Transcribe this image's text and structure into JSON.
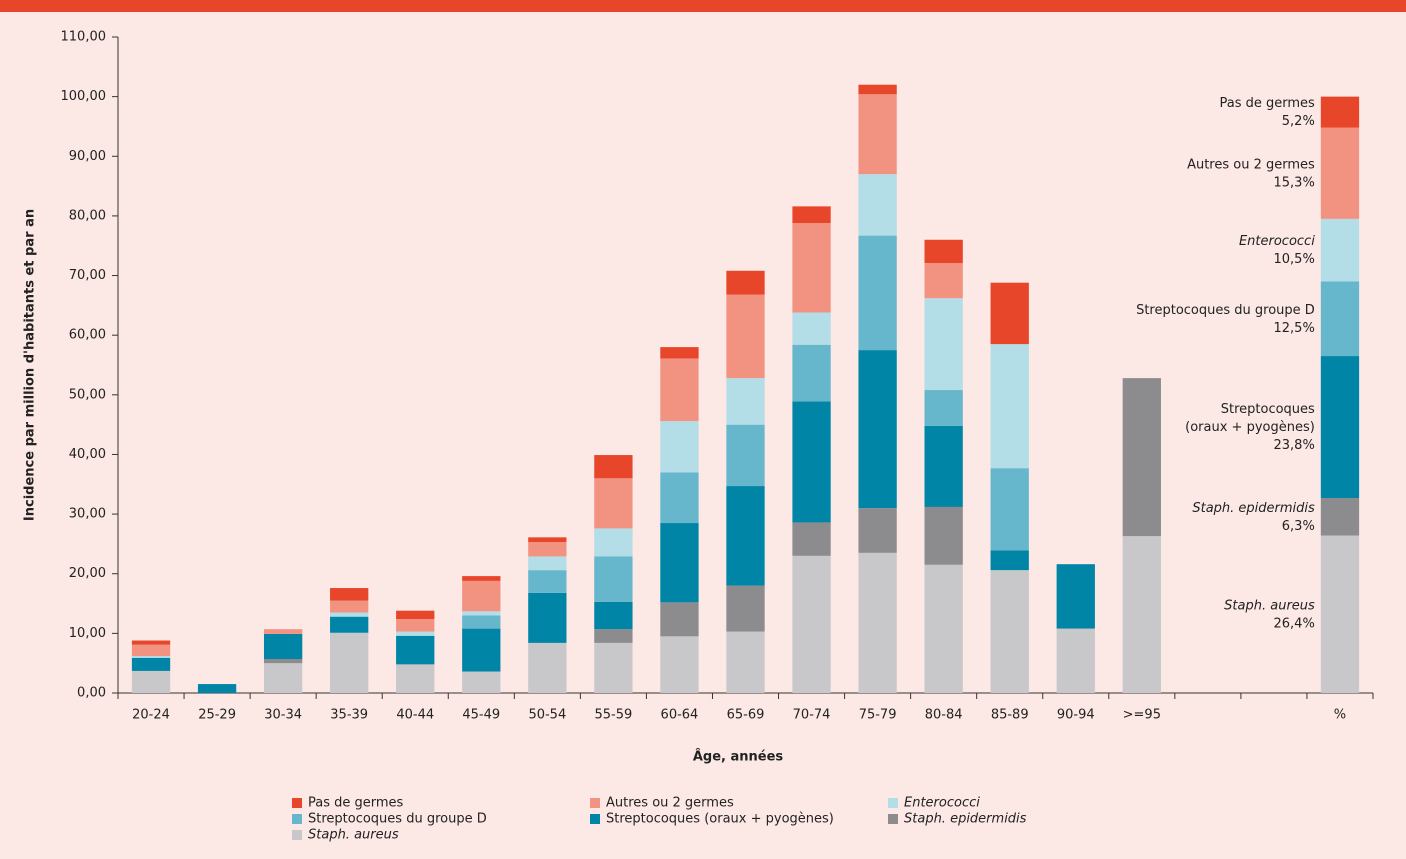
{
  "chart_data": {
    "type": "stacked-bar",
    "x_label": "Âge, années",
    "y_label": "Incidence par million d'habitants et par an",
    "categories": [
      "20-24",
      "25-29",
      "30-34",
      "35-39",
      "40-44",
      "45-49",
      "50-54",
      "55-59",
      "60-64",
      "65-69",
      "70-74",
      "75-79",
      "80-84",
      "85-89",
      "90-94",
      ">=95",
      null,
      null,
      "%"
    ],
    "series": [
      {
        "name": "Pas de germes",
        "color": "#e8462a",
        "italic": false,
        "values": [
          0.7,
          0,
          0,
          2.1,
          1.4,
          0.8,
          0.8,
          3.9,
          1.9,
          4,
          2.8,
          1.6,
          3.9,
          10.3,
          0,
          0,
          null,
          null,
          5.2
        ],
        "value_labels": [
          null,
          null,
          null,
          null,
          null,
          null,
          null,
          null,
          null,
          null,
          null,
          null,
          null,
          null,
          null,
          null,
          null,
          null,
          "5,2%"
        ]
      },
      {
        "name": "Autres ou 2 germes",
        "color": "#f29382",
        "italic": false,
        "values": [
          1.9,
          0,
          0.8,
          2,
          2.1,
          5.1,
          2.4,
          8.4,
          10.5,
          14,
          15,
          13.4,
          5.9,
          0,
          0,
          0,
          null,
          null,
          15.3
        ],
        "value_labels": [
          null,
          null,
          null,
          null,
          null,
          null,
          null,
          null,
          null,
          null,
          null,
          null,
          null,
          null,
          null,
          null,
          null,
          null,
          "15,3%"
        ]
      },
      {
        "name": "Enterococci",
        "color": "#b3dde7",
        "italic": true,
        "values": [
          0.3,
          0,
          0,
          0.7,
          0.7,
          0.7,
          2.3,
          4.7,
          8.6,
          7.8,
          5.4,
          10.3,
          15.4,
          20.8,
          0,
          0,
          null,
          null,
          10.5
        ],
        "value_labels": [
          null,
          null,
          null,
          null,
          null,
          null,
          null,
          null,
          null,
          null,
          null,
          null,
          null,
          null,
          null,
          null,
          null,
          null,
          "10,5%"
        ]
      },
      {
        "name": "Streptocoques du groupe D",
        "color": "#66b7cc",
        "italic": false,
        "values": [
          0,
          0,
          0,
          0,
          0,
          2.2,
          3.8,
          7.6,
          8.5,
          10.3,
          9.5,
          19.2,
          6,
          13.8,
          0,
          0,
          null,
          null,
          12.5
        ],
        "value_labels": [
          null,
          null,
          null,
          null,
          null,
          null,
          null,
          null,
          null,
          null,
          null,
          null,
          null,
          null,
          null,
          null,
          null,
          null,
          "12,5%"
        ]
      },
      {
        "name": "Streptocoques (oraux + pyogènes)",
        "color": "#0085a6",
        "italic": false,
        "values": [
          2.2,
          1.5,
          4.2,
          2.7,
          4.8,
          7.2,
          8.4,
          4.6,
          13.3,
          16.7,
          20.3,
          26.5,
          13.6,
          3.3,
          10.8,
          0,
          null,
          null,
          23.8
        ],
        "value_labels": [
          null,
          null,
          null,
          null,
          null,
          null,
          null,
          null,
          null,
          null,
          null,
          null,
          null,
          null,
          null,
          null,
          null,
          null,
          "23,8%"
        ]
      },
      {
        "name": "Staph. epidermidis",
        "color": "#8c8c8e",
        "italic": true,
        "values": [
          0,
          0,
          0.7,
          0,
          0,
          0,
          0,
          2.3,
          5.7,
          7.7,
          5.6,
          7.5,
          9.7,
          0,
          0,
          26.5,
          null,
          null,
          6.3
        ],
        "value_labels": [
          null,
          null,
          null,
          null,
          null,
          null,
          null,
          null,
          null,
          null,
          null,
          null,
          null,
          null,
          null,
          null,
          null,
          null,
          "6,3%"
        ]
      },
      {
        "name": "Staph. aureus",
        "color": "#c8c8ca",
        "italic": true,
        "values": [
          3.7,
          0,
          5,
          10.1,
          4.8,
          3.6,
          8.4,
          8.4,
          9.5,
          10.3,
          23,
          23.5,
          21.5,
          20.6,
          10.8,
          26.3,
          null,
          null,
          26.4
        ],
        "value_labels": [
          null,
          null,
          null,
          null,
          null,
          null,
          null,
          null,
          null,
          null,
          null,
          null,
          null,
          null,
          null,
          null,
          null,
          null,
          "26,4%"
        ]
      }
    ],
    "ylim": [
      0,
      110
    ],
    "yticks": [
      {
        "value": 0,
        "label": "0,00"
      },
      {
        "value": 10,
        "label": "10,00"
      },
      {
        "value": 20,
        "label": "20,00"
      },
      {
        "value": 30,
        "label": "30,00"
      },
      {
        "value": 40,
        "label": "40,00"
      },
      {
        "value": 50,
        "label": "50,00"
      },
      {
        "value": 60,
        "label": "60,00"
      },
      {
        "value": 70,
        "label": "70,00"
      },
      {
        "value": 80,
        "label": "80,00"
      },
      {
        "value": 90,
        "label": "90,00"
      },
      {
        "value": 100,
        "label": "100,00"
      },
      {
        "value": 110,
        "label": "110,00"
      }
    ],
    "grid": false
  }
}
